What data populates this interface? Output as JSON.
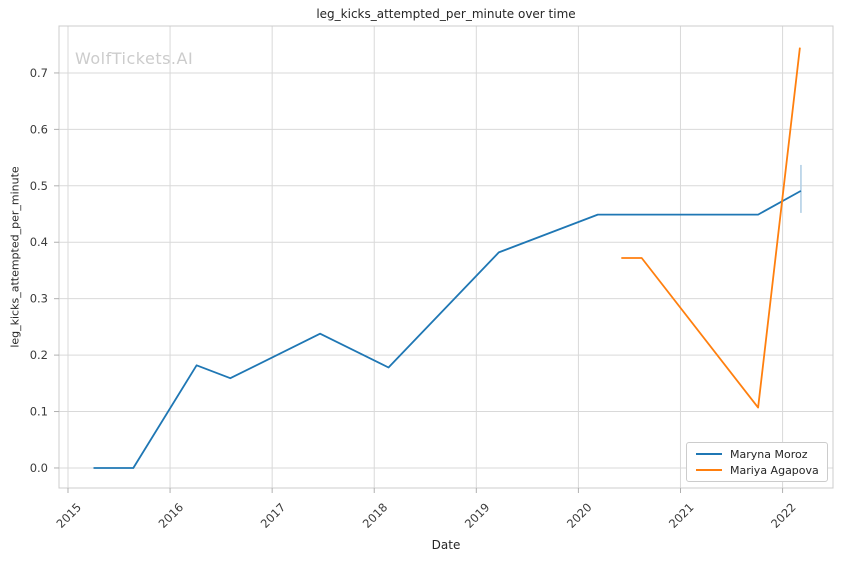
{
  "chart_data": {
    "type": "line",
    "title": "leg_kicks_attempted_per_minute over time",
    "xlabel": "Date",
    "ylabel": "leg_kicks_attempted_per_minute",
    "watermark": "WolfTickets.AI",
    "grid": true,
    "legend_position": "lower right",
    "xlim": [
      2014.912,
      2022.494
    ],
    "ylim": [
      -0.0355,
      0.7832
    ],
    "x_ticks": [
      2015,
      2016,
      2017,
      2018,
      2019,
      2020,
      2021,
      2022
    ],
    "x_tick_labels": [
      "2015",
      "2016",
      "2017",
      "2018",
      "2019",
      "2020",
      "2021",
      "2022"
    ],
    "y_ticks": [
      0.0,
      0.1,
      0.2,
      0.3,
      0.4,
      0.5,
      0.6,
      0.7
    ],
    "y_tick_labels": [
      "0.0",
      "0.1",
      "0.2",
      "0.3",
      "0.4",
      "0.5",
      "0.6",
      "0.7"
    ],
    "series": [
      {
        "name": "Maryna Moroz",
        "color": "#1f77b4",
        "points": [
          [
            2015.25,
            0.0
          ],
          [
            2015.64,
            0.0
          ],
          [
            2016.26,
            0.182
          ],
          [
            2016.59,
            0.159
          ],
          [
            2017.47,
            0.238
          ],
          [
            2018.14,
            0.178
          ],
          [
            2019.22,
            0.382
          ],
          [
            2020.19,
            0.449
          ],
          [
            2021.76,
            0.449
          ],
          [
            2022.18,
            0.491
          ]
        ]
      },
      {
        "name": "Mariya Agapova",
        "color": "#ff7f0e",
        "points": [
          [
            2020.42,
            0.372
          ],
          [
            2020.62,
            0.372
          ],
          [
            2021.76,
            0.107
          ],
          [
            2022.17,
            0.745
          ]
        ]
      }
    ],
    "error_bar": {
      "series": "Maryna Moroz",
      "x": 2022.18,
      "y_low": 0.452,
      "y_high": 0.537,
      "color": "#aecde4"
    },
    "style": {
      "grid_color": "#d9d9d9",
      "spine_color": "#cccccc",
      "tick_color": "#b0b0b0",
      "tick_label_color": "#3b3b3b",
      "background": "#ffffff"
    }
  }
}
